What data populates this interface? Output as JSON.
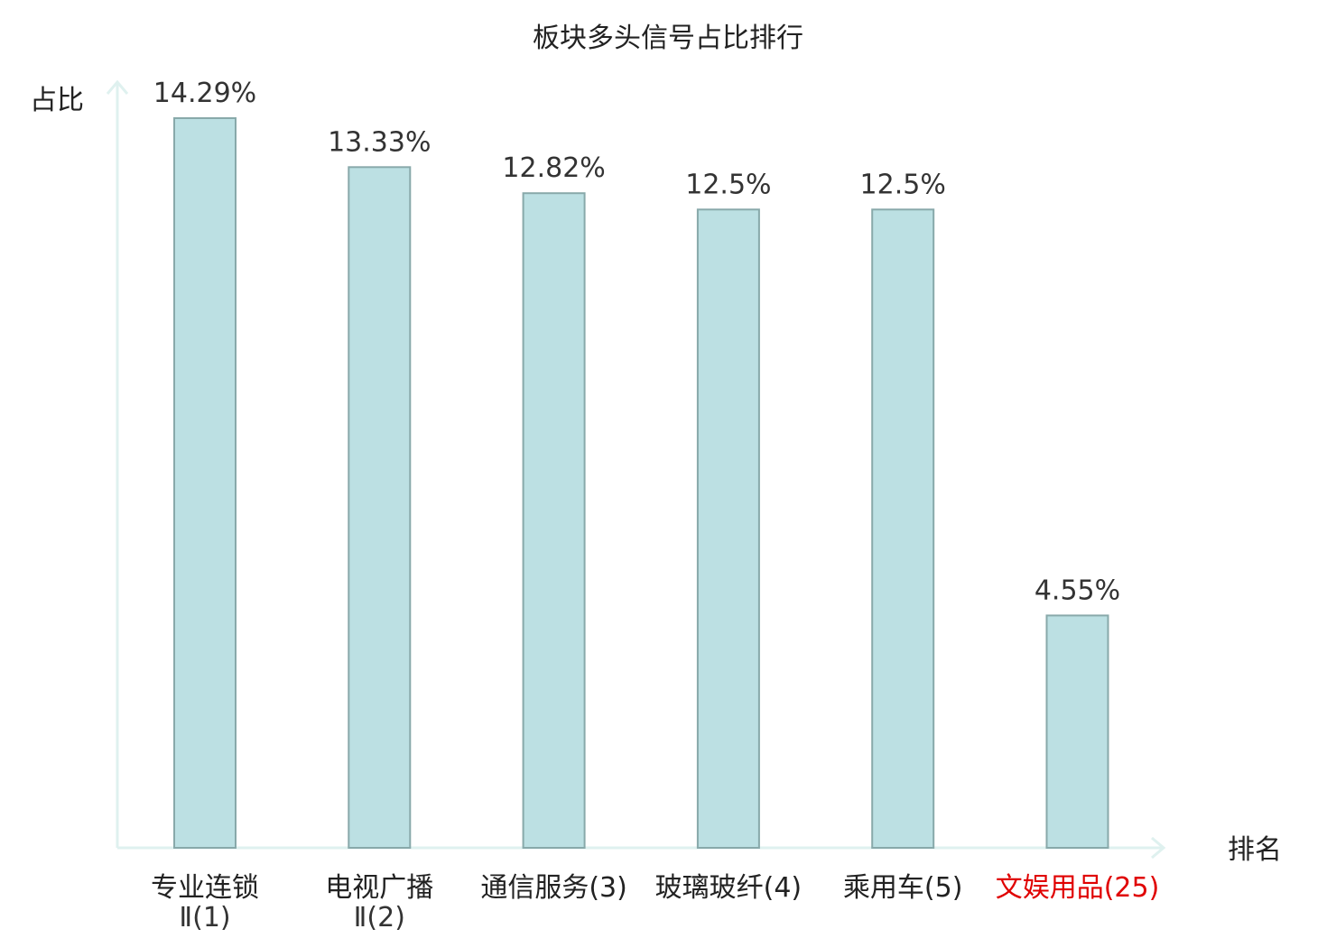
{
  "chart_data": {
    "type": "bar",
    "title": "板块多头信号占比排行",
    "ylabel": "占比",
    "xlabel": "排名",
    "categories": [
      {
        "lines": [
          "专业连锁",
          "Ⅱ(1)"
        ],
        "highlight": false
      },
      {
        "lines": [
          "电视广播",
          "Ⅱ(2)"
        ],
        "highlight": false
      },
      {
        "lines": [
          "通信服务(3)"
        ],
        "highlight": false
      },
      {
        "lines": [
          "玻璃玻纤(4)"
        ],
        "highlight": false
      },
      {
        "lines": [
          "乘用车(5)"
        ],
        "highlight": false
      },
      {
        "lines": [
          "文娱用品(25)"
        ],
        "highlight": true
      }
    ],
    "values": [
      14.29,
      13.33,
      12.82,
      12.5,
      12.5,
      4.55
    ],
    "value_labels": [
      "14.29%",
      "13.33%",
      "12.82%",
      "12.5%",
      "12.5%",
      "4.55%"
    ],
    "ylim": [
      0,
      14.29
    ],
    "grid": false,
    "legend": "none",
    "colors": {
      "bar_fill": "#bce0e3",
      "bar_stroke": "#88a9aa",
      "axis": "#dff1ef",
      "highlight_text": "#e00000"
    }
  }
}
